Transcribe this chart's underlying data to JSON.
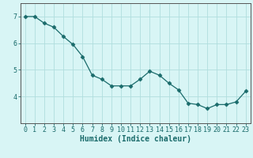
{
  "x": [
    0,
    1,
    2,
    3,
    4,
    5,
    6,
    7,
    8,
    9,
    10,
    11,
    12,
    13,
    14,
    15,
    16,
    17,
    18,
    19,
    20,
    21,
    22,
    23
  ],
  "y": [
    7.0,
    7.0,
    6.75,
    6.6,
    6.25,
    5.95,
    5.5,
    4.8,
    4.65,
    4.4,
    4.4,
    4.4,
    4.65,
    4.95,
    4.8,
    4.5,
    4.25,
    3.75,
    3.7,
    3.55,
    3.7,
    3.7,
    3.8,
    4.2
  ],
  "xlabel": "Humidex (Indice chaleur)",
  "ylabel": "",
  "xlim": [
    -0.5,
    23.5
  ],
  "ylim": [
    3.0,
    7.5
  ],
  "yticks": [
    4,
    5,
    6,
    7
  ],
  "xticks": [
    0,
    1,
    2,
    3,
    4,
    5,
    6,
    7,
    8,
    9,
    10,
    11,
    12,
    13,
    14,
    15,
    16,
    17,
    18,
    19,
    20,
    21,
    22,
    23
  ],
  "line_color": "#1a6b6b",
  "marker_color": "#1a6b6b",
  "bg_color": "#d8f5f5",
  "grid_color": "#b0dede",
  "axis_color": "#555555",
  "tick_label_fontsize": 6,
  "xlabel_fontsize": 7
}
